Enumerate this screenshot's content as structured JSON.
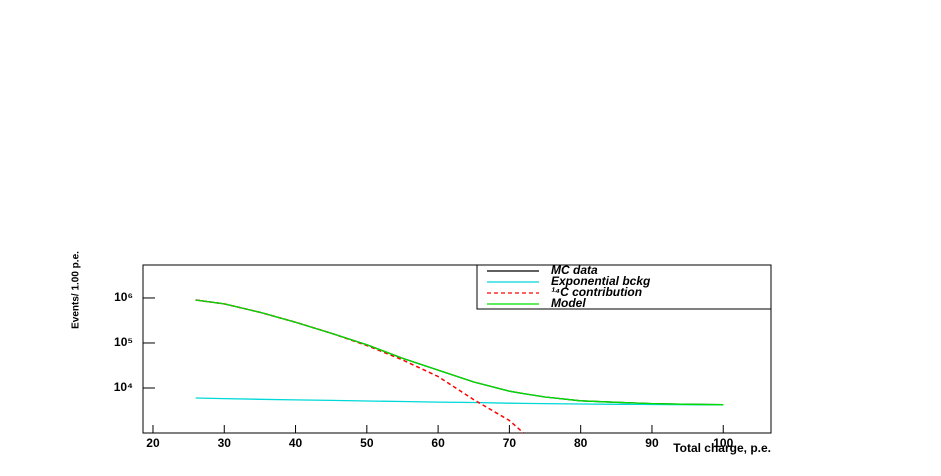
{
  "chart_data": {
    "type": "line",
    "x_label": "Total charge, p.e.",
    "y_label": "Events/ 1.00 p.e.",
    "x": [
      26,
      30,
      35,
      40,
      45,
      50,
      55,
      60,
      65,
      70,
      72,
      75,
      80,
      85,
      90,
      95,
      100
    ],
    "series": [
      {
        "name": "MC data",
        "color": "#000000",
        "values": [
          900000,
          740000,
          480000,
          290000,
          165000,
          91000,
          46000,
          25000,
          13600,
          8500,
          7500,
          6300,
          5200,
          4800,
          4500,
          4350,
          4250
        ]
      },
      {
        "name": "Exponential bckg",
        "color": "#00d8d8",
        "values": [
          6000,
          5800,
          5600,
          5450,
          5300,
          5150,
          5000,
          4850,
          4750,
          4600,
          4550,
          4500,
          4400,
          4350,
          4300,
          4250,
          4200
        ]
      },
      {
        "name": "¹⁴C contribution",
        "color": "#ff0000",
        "dashed": true,
        "values": [
          900000,
          740000,
          480000,
          290000,
          165000,
          88000,
          42000,
          18000,
          5500,
          1900,
          1000,
          null,
          null,
          null,
          null,
          null,
          null
        ]
      },
      {
        "name": "Model",
        "color": "#00dd00",
        "values": [
          900000,
          740000,
          480000,
          290000,
          165000,
          91000,
          46000,
          25000,
          13600,
          8500,
          7500,
          6300,
          5200,
          4800,
          4500,
          4350,
          4250
        ]
      }
    ],
    "xlim": [
      18.6,
      106.7
    ],
    "xticks": [
      20,
      30,
      40,
      50,
      60,
      70,
      80,
      90,
      100
    ],
    "ylim": [
      1000,
      5400000
    ],
    "yticks": [
      {
        "value": 10000,
        "label": "10⁴"
      },
      {
        "value": 100000,
        "label": "10⁵"
      },
      {
        "value": 1000000,
        "label": "10⁶"
      }
    ],
    "log_y": true,
    "legend": "top-right"
  }
}
